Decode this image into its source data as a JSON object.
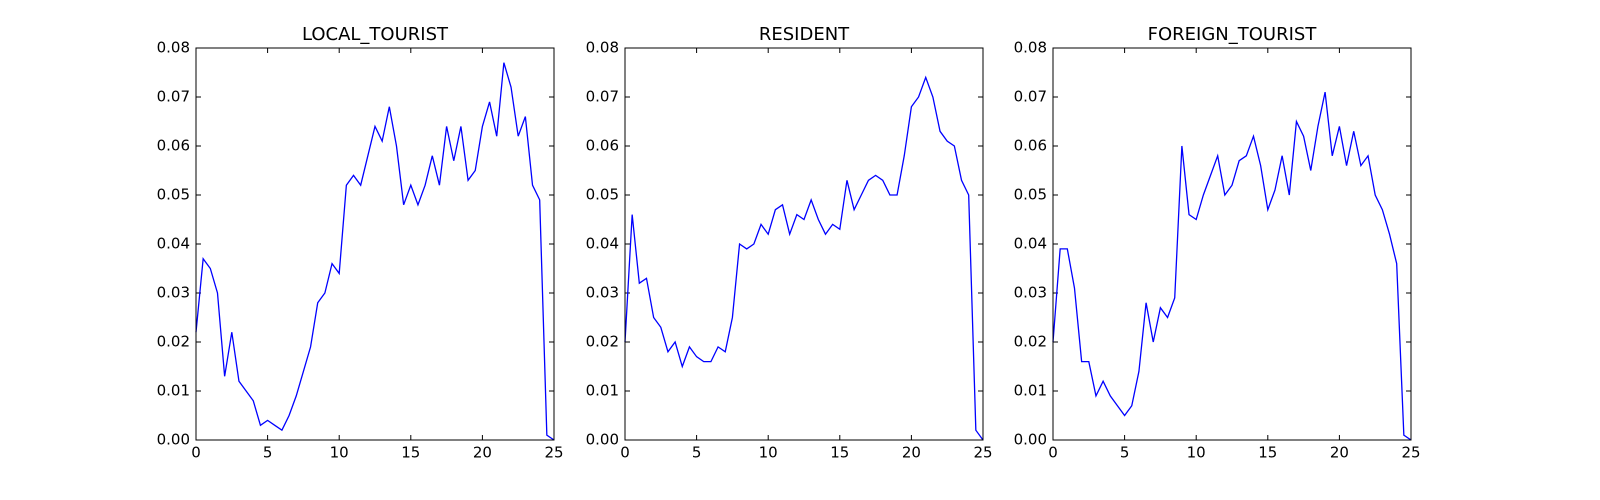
{
  "chart_data": [
    {
      "type": "line",
      "title": "LOCAL_TOURIST",
      "x": [
        0,
        0.5,
        1,
        1.5,
        2,
        2.5,
        3,
        3.5,
        4,
        4.5,
        5,
        5.5,
        6,
        6.5,
        7,
        7.5,
        8,
        8.5,
        9,
        9.5,
        10,
        10.5,
        11,
        11.5,
        12,
        12.5,
        13,
        13.5,
        14,
        14.5,
        15,
        15.5,
        16,
        16.5,
        17,
        17.5,
        18,
        18.5,
        19,
        19.5,
        20,
        20.5,
        21,
        21.5,
        22,
        22.5,
        23,
        23.5,
        24,
        24.5,
        25
      ],
      "series": [
        {
          "color": "#0000ff",
          "values": [
            0.022,
            0.037,
            0.035,
            0.03,
            0.013,
            0.022,
            0.012,
            0.01,
            0.008,
            0.003,
            0.004,
            0.003,
            0.002,
            0.005,
            0.009,
            0.014,
            0.019,
            0.028,
            0.03,
            0.036,
            0.034,
            0.052,
            0.054,
            0.052,
            0.058,
            0.064,
            0.061,
            0.068,
            0.06,
            0.048,
            0.052,
            0.048,
            0.052,
            0.058,
            0.052,
            0.064,
            0.057,
            0.064,
            0.053,
            0.055,
            0.064,
            0.069,
            0.062,
            0.077,
            0.072,
            0.062,
            0.066,
            0.052,
            0.049,
            0.001,
            0
          ]
        }
      ],
      "xlim": [
        0,
        25
      ],
      "ylim": [
        0,
        0.08
      ],
      "xticks": [
        0,
        5,
        10,
        15,
        20,
        25
      ],
      "yticks": [
        {
          "value": 0,
          "label": "0.00"
        },
        0.01,
        0.02,
        0.03,
        0.04,
        0.05,
        0.06,
        0.07,
        0.08
      ]
    },
    {
      "type": "line",
      "title": "RESIDENT",
      "x": [
        0,
        0.5,
        1,
        1.5,
        2,
        2.5,
        3,
        3.5,
        4,
        4.5,
        5,
        5.5,
        6,
        6.5,
        7,
        7.5,
        8,
        8.5,
        9,
        9.5,
        10,
        10.5,
        11,
        11.5,
        12,
        12.5,
        13,
        13.5,
        14,
        14.5,
        15,
        15.5,
        16,
        16.5,
        17,
        17.5,
        18,
        18.5,
        19,
        19.5,
        20,
        20.5,
        21,
        21.5,
        22,
        22.5,
        23,
        23.5,
        24,
        24.5,
        25
      ],
      "series": [
        {
          "color": "#0000ff",
          "values": [
            0.02,
            0.046,
            0.032,
            0.033,
            0.025,
            0.023,
            0.018,
            0.02,
            0.015,
            0.019,
            0.017,
            0.016,
            0.016,
            0.019,
            0.018,
            0.025,
            0.04,
            0.039,
            0.04,
            0.044,
            0.042,
            0.047,
            0.048,
            0.042,
            0.046,
            0.045,
            0.049,
            0.045,
            0.042,
            0.044,
            0.043,
            0.053,
            0.047,
            0.05,
            0.053,
            0.054,
            0.053,
            0.05,
            0.05,
            0.058,
            0.068,
            0.07,
            0.074,
            0.07,
            0.063,
            0.061,
            0.06,
            0.053,
            0.05,
            0.002,
            0
          ]
        }
      ],
      "xlim": [
        0,
        25
      ],
      "ylim": [
        0,
        0.08
      ],
      "xticks": [
        0,
        5,
        10,
        15,
        20,
        25
      ],
      "yticks": [
        {
          "value": 0,
          "label": "0.00"
        },
        0.01,
        0.02,
        0.03,
        0.04,
        0.05,
        0.06,
        0.07,
        0.08
      ]
    },
    {
      "type": "line",
      "title": "FOREIGN_TOURIST",
      "x": [
        0,
        0.5,
        1,
        1.5,
        2,
        2.5,
        3,
        3.5,
        4,
        4.5,
        5,
        5.5,
        6,
        6.5,
        7,
        7.5,
        8,
        8.5,
        9,
        9.5,
        10,
        10.5,
        11,
        11.5,
        12,
        12.5,
        13,
        13.5,
        14,
        14.5,
        15,
        15.5,
        16,
        16.5,
        17,
        17.5,
        18,
        18.5,
        19,
        19.5,
        20,
        20.5,
        21,
        21.5,
        22,
        22.5,
        23,
        23.5,
        24,
        24.5,
        25
      ],
      "series": [
        {
          "color": "#0000ff",
          "values": [
            0.02,
            0.039,
            0.039,
            0.031,
            0.016,
            0.016,
            0.009,
            0.012,
            0.009,
            0.007,
            0.005,
            0.007,
            0.014,
            0.028,
            0.02,
            0.027,
            0.025,
            0.029,
            0.06,
            0.046,
            0.045,
            0.05,
            0.054,
            0.058,
            0.05,
            0.052,
            0.057,
            0.058,
            0.062,
            0.056,
            0.047,
            0.051,
            0.058,
            0.05,
            0.065,
            0.062,
            0.055,
            0.064,
            0.071,
            0.058,
            0.064,
            0.056,
            0.063,
            0.056,
            0.058,
            0.05,
            0.047,
            0.042,
            0.036,
            0.001,
            0
          ]
        }
      ],
      "xlim": [
        0,
        25
      ],
      "ylim": [
        0,
        0.08
      ],
      "xticks": [
        0,
        5,
        10,
        15,
        20,
        25
      ],
      "yticks": [
        {
          "value": 0,
          "label": "0.00"
        },
        0.01,
        0.02,
        0.03,
        0.04,
        0.05,
        0.06,
        0.07,
        0.08
      ]
    }
  ]
}
